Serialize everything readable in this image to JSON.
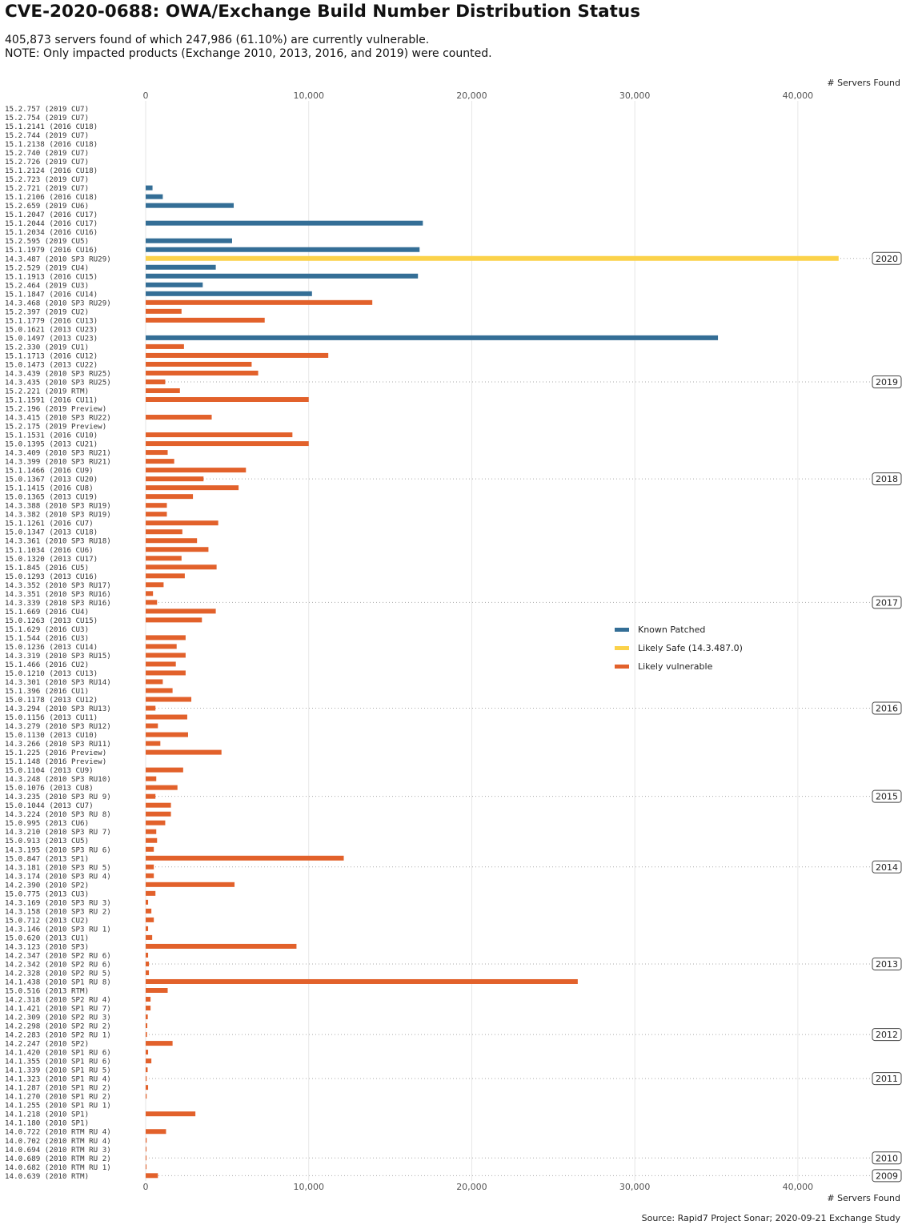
{
  "title": "CVE-2020-0688: OWA/Exchange Build Number Distribution Status",
  "subtitle": [
    "405,873 servers found of which 247,986 (61.10%) are currently vulnerable.",
    "NOTE: Only impacted products (Exchange 2010, 2013, 2016, and 2019) were counted."
  ],
  "caption": "Source: Rapid7 Project Sonar; 2020-09-21 Exchange Study",
  "colors": {
    "patched": "#346e96",
    "safe": "#fbd24a",
    "vulnerable": "#e2612b",
    "grid": "#e6e6e6",
    "year_line": "#aaaaaa"
  },
  "chart_data": {
    "type": "bar",
    "orientation": "horizontal",
    "xlabel": "# Servers Found",
    "xlim": [
      0,
      43000
    ],
    "xticks": [
      0,
      10000,
      20000,
      30000,
      40000
    ],
    "xtick_labels": [
      "0",
      "10,000",
      "20,000",
      "30,000",
      "40,000"
    ],
    "legend": {
      "position": "center-right",
      "entries": [
        {
          "key": "patched",
          "label": "Known Patched"
        },
        {
          "key": "safe",
          "label": "Likely Safe (14.3.487.0)"
        },
        {
          "key": "vulnerable",
          "label": "Likely vulnerable"
        }
      ]
    },
    "categories": [
      "15.2.757 (2019 CU7)",
      "15.2.754 (2019 CU7)",
      "15.1.2141 (2016 CU18)",
      "15.2.744 (2019 CU7)",
      "15.1.2138 (2016 CU18)",
      "15.2.740 (2019 CU7)",
      "15.2.726 (2019 CU7)",
      "15.1.2124 (2016 CU18)",
      "15.2.723 (2019 CU7)",
      "15.2.721 (2019 CU7)",
      "15.1.2106 (2016 CU18)",
      "15.2.659 (2019 CU6)",
      "15.1.2047 (2016 CU17)",
      "15.1.2044 (2016 CU17)",
      "15.1.2034 (2016 CU16)",
      "15.2.595 (2019 CU5)",
      "15.1.1979 (2016 CU16)",
      "14.3.487 (2010 SP3 RU29)",
      "15.2.529 (2019 CU4)",
      "15.1.1913 (2016 CU15)",
      "15.2.464 (2019 CU3)",
      "15.1.1847 (2016 CU14)",
      "14.3.468 (2010 SP3 RU29)",
      "15.2.397 (2019 CU2)",
      "15.1.1779 (2016 CU13)",
      "15.0.1621 (2013 CU23)",
      "15.0.1497 (2013 CU23)",
      "15.2.330 (2019 CU1)",
      "15.1.1713 (2016 CU12)",
      "15.0.1473 (2013 CU22)",
      "14.3.439 (2010 SP3 RU25)",
      "14.3.435 (2010 SP3 RU25)",
      "15.2.221 (2019 RTM)",
      "15.1.1591 (2016 CU11)",
      "15.2.196 (2019 Preview)",
      "14.3.415 (2010 SP3 RU22)",
      "15.2.175 (2019 Preview)",
      "15.1.1531 (2016 CU10)",
      "15.0.1395 (2013 CU21)",
      "14.3.409 (2010 SP3 RU21)",
      "14.3.399 (2010 SP3 RU21)",
      "15.1.1466 (2016 CU9)",
      "15.0.1367 (2013 CU20)",
      "15.1.1415 (2016 CU8)",
      "15.0.1365 (2013 CU19)",
      "14.3.388 (2010 SP3 RU19)",
      "14.3.382 (2010 SP3 RU19)",
      "15.1.1261 (2016 CU7)",
      "15.0.1347 (2013 CU18)",
      "14.3.361 (2010 SP3 RU18)",
      "15.1.1034 (2016 CU6)",
      "15.0.1320 (2013 CU17)",
      "15.1.845 (2016 CU5)",
      "15.0.1293 (2013 CU16)",
      "14.3.352 (2010 SP3 RU17)",
      "14.3.351 (2010 SP3 RU16)",
      "14.3.339 (2010 SP3 RU16)",
      "15.1.669 (2016 CU4)",
      "15.0.1263 (2013 CU15)",
      "15.1.629 (2016 CU3)",
      "15.1.544 (2016 CU3)",
      "15.0.1236 (2013 CU14)",
      "14.3.319 (2010 SP3 RU15)",
      "15.1.466 (2016 CU2)",
      "15.0.1210 (2013 CU13)",
      "14.3.301 (2010 SP3 RU14)",
      "15.1.396 (2016 CU1)",
      "15.0.1178 (2013 CU12)",
      "14.3.294 (2010 SP3 RU13)",
      "15.0.1156 (2013 CU11)",
      "14.3.279 (2010 SP3 RU12)",
      "15.0.1130 (2013 CU10)",
      "14.3.266 (2010 SP3 RU11)",
      "15.1.225 (2016 Preview)",
      "15.1.148 (2016 Preview)",
      "15.0.1104 (2013 CU9)",
      "14.3.248 (2010 SP3 RU10)",
      "15.0.1076 (2013 CU8)",
      "14.3.235 (2010 SP3 RU 9)",
      "15.0.1044 (2013 CU7)",
      "14.3.224 (2010 SP3 RU 8)",
      "15.0.995 (2013 CU6)",
      "14.3.210 (2010 SP3 RU 7)",
      "15.0.913 (2013 CU5)",
      "14.3.195 (2010 SP3 RU 6)",
      "15.0.847 (2013 SP1)",
      "14.3.181 (2010 SP3 RU 5)",
      "14.3.174 (2010 SP3 RU 4)",
      "14.2.390 (2010 SP2)",
      "15.0.775 (2013 CU3)",
      "14.3.169 (2010 SP3 RU 3)",
      "14.3.158 (2010 SP3 RU 2)",
      "15.0.712 (2013 CU2)",
      "14.3.146 (2010 SP3 RU 1)",
      "15.0.620 (2013 CU1)",
      "14.3.123 (2010 SP3)",
      "14.2.347 (2010 SP2 RU 6)",
      "14.2.342 (2010 SP2 RU 6)",
      "14.2.328 (2010 SP2 RU 5)",
      "14.1.438 (2010 SP1 RU 8)",
      "15.0.516 (2013 RTM)",
      "14.2.318 (2010 SP2 RU 4)",
      "14.1.421 (2010 SP1 RU 7)",
      "14.2.309 (2010 SP2 RU 3)",
      "14.2.298 (2010 SP2 RU 2)",
      "14.2.283 (2010 SP2 RU 1)",
      "14.2.247 (2010 SP2)",
      "14.1.420 (2010 SP1 RU 6)",
      "14.1.355 (2010 SP1 RU 6)",
      "14.1.339 (2010 SP1 RU 5)",
      "14.1.323 (2010 SP1 RU 4)",
      "14.1.287 (2010 SP1 RU 2)",
      "14.1.270 (2010 SP1 RU 2)",
      "14.1.255 (2010 SP1 RU 1)",
      "14.1.218 (2010 SP1)",
      "14.1.180 (2010 SP1)",
      "14.0.722 (2010 RTM RU 4)",
      "14.0.702 (2010 RTM RU 4)",
      "14.0.694 (2010 RTM RU 3)",
      "14.0.689 (2010 RTM RU 2)",
      "14.0.682 (2010 RTM RU 1)",
      "14.0.639 (2010 RTM)"
    ],
    "values": [
      0,
      0,
      0,
      0,
      0,
      0,
      0,
      0,
      0,
      420,
      1050,
      5400,
      0,
      17000,
      0,
      5300,
      16800,
      42500,
      4300,
      16700,
      3500,
      10200,
      13900,
      2200,
      7300,
      0,
      35100,
      2350,
      11200,
      6500,
      6900,
      1200,
      2100,
      10000,
      0,
      4050,
      0,
      9000,
      10000,
      1350,
      1750,
      6150,
      3550,
      5700,
      2900,
      1300,
      1300,
      4450,
      2250,
      3150,
      3850,
      2200,
      4350,
      2400,
      1100,
      450,
      700,
      4300,
      3450,
      0,
      2450,
      1900,
      2450,
      1850,
      2450,
      1050,
      1650,
      2800,
      600,
      2550,
      750,
      2600,
      900,
      4650,
      0,
      2300,
      650,
      1950,
      600,
      1550,
      1550,
      1200,
      650,
      700,
      500,
      12150,
      500,
      500,
      5450,
      600,
      150,
      350,
      500,
      150,
      400,
      9250,
      150,
      200,
      200,
      26500,
      1350,
      300,
      300,
      130,
      100,
      80,
      1650,
      150,
      350,
      120,
      60,
      150,
      60,
      0,
      3050,
      0,
      1250,
      60,
      50,
      50,
      50,
      750
    ],
    "status": [
      "p",
      "p",
      "p",
      "p",
      "p",
      "p",
      "p",
      "p",
      "p",
      "p",
      "p",
      "p",
      "p",
      "p",
      "p",
      "p",
      "p",
      "s",
      "p",
      "p",
      "p",
      "p",
      "v",
      "v",
      "v",
      "p",
      "p",
      "v",
      "v",
      "v",
      "v",
      "v",
      "v",
      "v",
      "v",
      "v",
      "v",
      "v",
      "v",
      "v",
      "v",
      "v",
      "v",
      "v",
      "v",
      "v",
      "v",
      "v",
      "v",
      "v",
      "v",
      "v",
      "v",
      "v",
      "v",
      "v",
      "v",
      "v",
      "v",
      "v",
      "v",
      "v",
      "v",
      "v",
      "v",
      "v",
      "v",
      "v",
      "v",
      "v",
      "v",
      "v",
      "v",
      "v",
      "v",
      "v",
      "v",
      "v",
      "v",
      "v",
      "v",
      "v",
      "v",
      "v",
      "v",
      "v",
      "v",
      "v",
      "v",
      "v",
      "v",
      "v",
      "v",
      "v",
      "v",
      "v",
      "v",
      "v",
      "v",
      "v",
      "v",
      "v",
      "v",
      "v",
      "v",
      "v",
      "v",
      "v",
      "v",
      "v",
      "v",
      "v",
      "v",
      "v",
      "v",
      "v",
      "v",
      "v",
      "v",
      "v",
      "v",
      "v"
    ],
    "year_markers": [
      {
        "label": "2020",
        "at_category": "14.3.487 (2010 SP3 RU29)"
      },
      {
        "label": "2019",
        "at_category": "14.3.435 (2010 SP3 RU25)"
      },
      {
        "label": "2018",
        "at_category": "15.0.1367 (2013 CU20)"
      },
      {
        "label": "2017",
        "at_category": "14.3.339 (2010 SP3 RU16)"
      },
      {
        "label": "2016",
        "at_category": "14.3.294 (2010 SP3 RU13)"
      },
      {
        "label": "2015",
        "at_category": "14.3.235 (2010 SP3 RU 9)"
      },
      {
        "label": "2014",
        "at_category": "14.3.181 (2010 SP3 RU 5)"
      },
      {
        "label": "2013",
        "at_category": "14.2.342 (2010 SP2 RU 6)"
      },
      {
        "label": "2012",
        "at_category": "14.2.283 (2010 SP2 RU 1)"
      },
      {
        "label": "2011",
        "at_category": "14.1.323 (2010 SP1 RU 4)"
      },
      {
        "label": "2010",
        "at_category": "14.0.689 (2010 RTM RU 2)"
      },
      {
        "label": "2009",
        "at_category": "14.0.639 (2010 RTM)"
      }
    ]
  }
}
